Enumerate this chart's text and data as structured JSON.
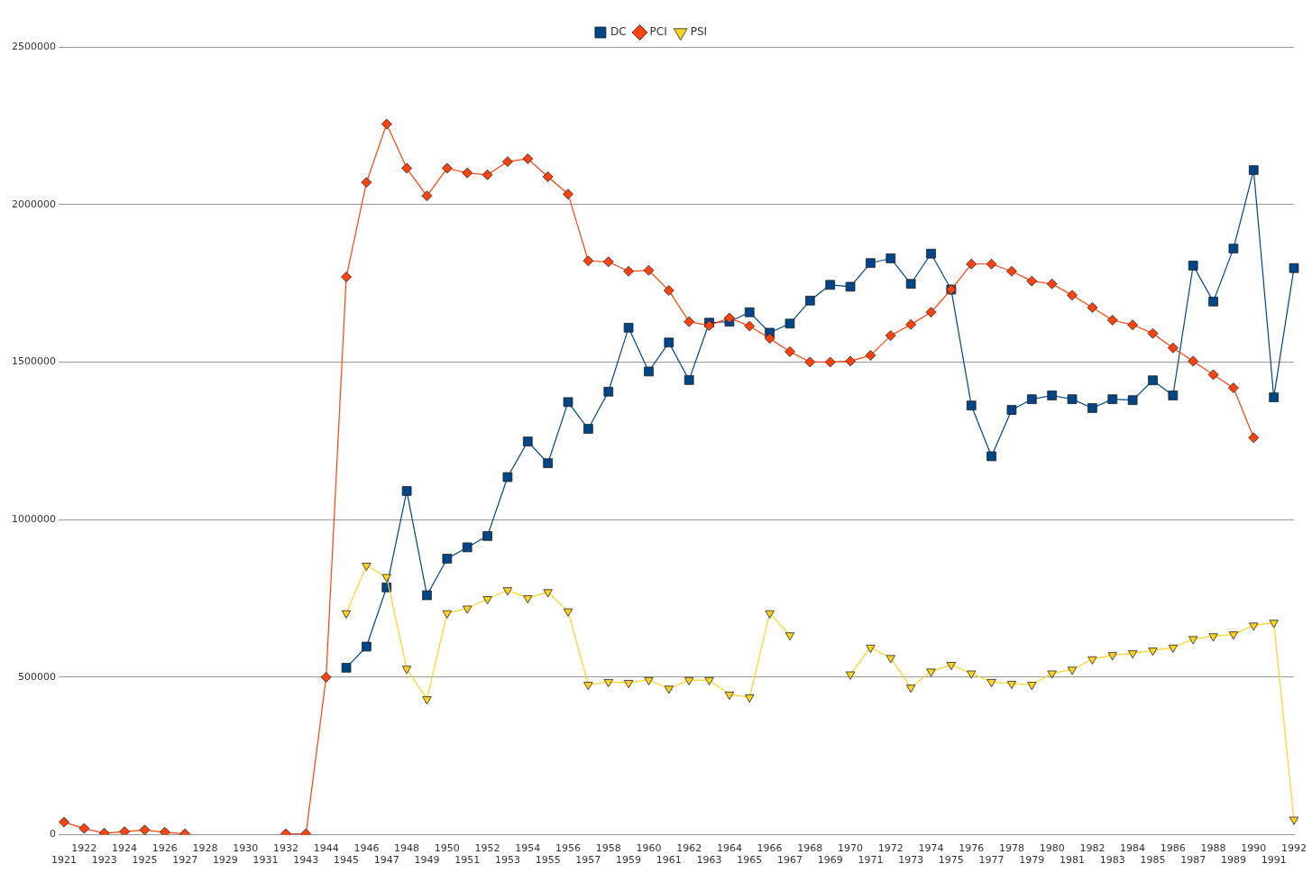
{
  "chart_data": {
    "type": "line",
    "categories": [
      "1921",
      "1922",
      "1923",
      "1924",
      "1925",
      "1926",
      "1927",
      "1928",
      "1929",
      "1930",
      "1931",
      "1932",
      "1943",
      "1944",
      "1945",
      "1946",
      "1947",
      "1948",
      "1949",
      "1950",
      "1951",
      "1952",
      "1953",
      "1954",
      "1955",
      "1956",
      "1957",
      "1958",
      "1959",
      "1960",
      "1961",
      "1962",
      "1963",
      "1964",
      "1965",
      "1966",
      "1967",
      "1968",
      "1969",
      "1970",
      "1971",
      "1972",
      "1973",
      "1974",
      "1975",
      "1976",
      "1977",
      "1978",
      "1979",
      "1980",
      "1981",
      "1982",
      "1983",
      "1984",
      "1985",
      "1986",
      "1987",
      "1988",
      "1989",
      "1990",
      "1991",
      "1992"
    ],
    "series": [
      {
        "name": "DC",
        "color": "#004586",
        "marker": "square",
        "values": [
          null,
          null,
          null,
          null,
          null,
          null,
          null,
          null,
          null,
          null,
          null,
          null,
          null,
          null,
          530000,
          597000,
          785000,
          1091000,
          760000,
          876000,
          912000,
          948000,
          1135000,
          1248000,
          1179000,
          1373000,
          1288000,
          1406000,
          1609000,
          1470000,
          1562000,
          1443000,
          1625000,
          1628000,
          1658000,
          1593000,
          1622000,
          1695000,
          1745000,
          1739000,
          1814000,
          1829000,
          1748000,
          1844000,
          1730000,
          1362000,
          1201000,
          1348000,
          1382000,
          1394000,
          1382000,
          1354000,
          1382000,
          1379000,
          1442000,
          1394000,
          1806000,
          1692000,
          1860000,
          2109000,
          1388000,
          1798000
        ]
      },
      {
        "name": "PCI",
        "color": "#ff420e",
        "marker": "diamond",
        "values": [
          40000,
          20000,
          5000,
          10000,
          15000,
          8000,
          3000,
          null,
          null,
          null,
          null,
          3000,
          3000,
          500000,
          1770000,
          2070000,
          2255000,
          2115000,
          2027000,
          2115000,
          2100000,
          2094000,
          2136000,
          2145000,
          2088000,
          2033000,
          1821000,
          1818000,
          1788000,
          1791000,
          1727000,
          1628000,
          1616000,
          1640000,
          1614000,
          1575000,
          1533000,
          1500000,
          1500000,
          1503000,
          1521000,
          1584000,
          1619000,
          1658000,
          1730000,
          1811000,
          1811000,
          1788000,
          1757000,
          1748000,
          1712000,
          1673000,
          1633000,
          1618000,
          1591000,
          1545000,
          1503000,
          1460000,
          1418000,
          1260000,
          null,
          null
        ]
      },
      {
        "name": "PSI",
        "color": "#ffd320",
        "marker": "triangle",
        "values": [
          null,
          null,
          null,
          null,
          null,
          null,
          null,
          null,
          null,
          null,
          null,
          null,
          null,
          null,
          703000,
          854000,
          818000,
          527000,
          430000,
          703000,
          718000,
          748000,
          776000,
          751000,
          770000,
          709000,
          476000,
          485000,
          482000,
          491000,
          464000,
          491000,
          491000,
          445000,
          436000,
          703000,
          633000,
          null,
          null,
          509000,
          594000,
          561000,
          467000,
          518000,
          539000,
          512000,
          485000,
          479000,
          476000,
          512000,
          524000,
          557000,
          570000,
          576000,
          585000,
          594000,
          621000,
          630000,
          636000,
          664000,
          673000,
          48000
        ]
      }
    ],
    "ylim": [
      0,
      2500000
    ],
    "yticks": [
      0,
      500000,
      1000000,
      1500000,
      2000000,
      2500000
    ],
    "grid": "y",
    "legend": "top"
  }
}
